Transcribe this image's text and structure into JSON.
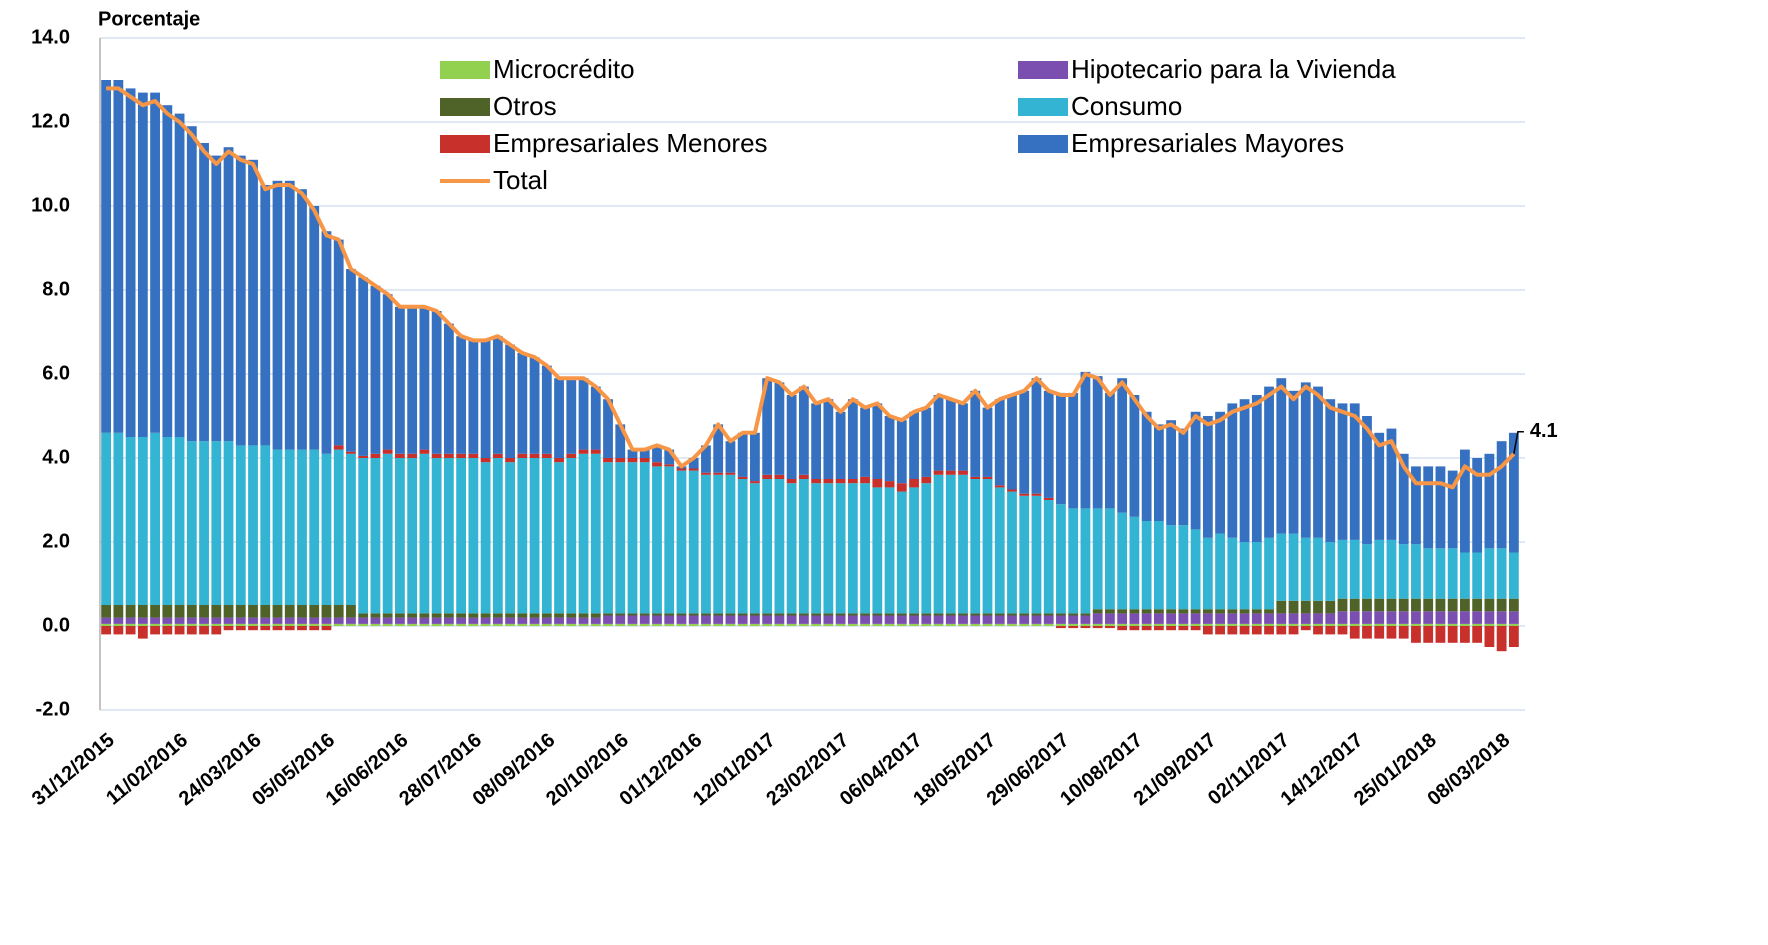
{
  "chart_data": {
    "type": "stacked-bar-line",
    "y_label": "Porcentaje",
    "categories": [
      "31/12/2015",
      null,
      null,
      null,
      null,
      null,
      "11/02/2016",
      null,
      null,
      null,
      null,
      null,
      "24/03/2016",
      null,
      null,
      null,
      null,
      null,
      "05/05/2016",
      null,
      null,
      null,
      null,
      null,
      "16/06/2016",
      null,
      null,
      null,
      null,
      null,
      "28/07/2016",
      null,
      null,
      null,
      null,
      null,
      "08/09/2016",
      null,
      null,
      null,
      null,
      null,
      "20/10/2016",
      null,
      null,
      null,
      null,
      null,
      "01/12/2016",
      null,
      null,
      null,
      null,
      null,
      "12/01/2017",
      null,
      null,
      null,
      null,
      null,
      "23/02/2017",
      null,
      null,
      null,
      null,
      null,
      "06/04/2017",
      null,
      null,
      null,
      null,
      null,
      "18/05/2017",
      null,
      null,
      null,
      null,
      null,
      "29/06/2017",
      null,
      null,
      null,
      null,
      null,
      "10/08/2017",
      null,
      null,
      null,
      null,
      null,
      "21/09/2017",
      null,
      null,
      null,
      null,
      null,
      "02/11/2017",
      null,
      null,
      null,
      null,
      null,
      "14/12/2017",
      null,
      null,
      null,
      null,
      null,
      "25/01/2018",
      null,
      null,
      null,
      null,
      null,
      "08/03/2018",
      null
    ],
    "ylim": [
      -2,
      14
    ],
    "yticks": [
      {
        "value": -2,
        "label": "-2.0"
      },
      {
        "value": 0,
        "label": "0.0"
      },
      {
        "value": 2,
        "label": "2.0"
      },
      {
        "value": 4,
        "label": "4.0"
      },
      {
        "value": 6,
        "label": "6.0"
      },
      {
        "value": 8,
        "label": "8.0"
      },
      {
        "value": 10,
        "label": "10.0"
      },
      {
        "value": 12,
        "label": "12.0"
      },
      {
        "value": 14,
        "label": "14.0"
      }
    ],
    "grid": true,
    "series": [
      {
        "name": "Microcrédito",
        "color": "#92d050",
        "values": [
          0.05,
          0.05,
          0.05,
          0.05,
          0.05,
          0.05,
          0.05,
          0.05,
          0.05,
          0.05,
          0.05,
          0.05,
          0.05,
          0.05,
          0.05,
          0.05,
          0.05,
          0.05,
          0.05,
          0.05,
          0.05,
          0.05,
          0.05,
          0.05,
          0.05,
          0.05,
          0.05,
          0.05,
          0.05,
          0.05,
          0.05,
          0.05,
          0.05,
          0.05,
          0.05,
          0.05,
          0.05,
          0.05,
          0.05,
          0.05,
          0.05,
          0.05,
          0.05,
          0.05,
          0.05,
          0.05,
          0.05,
          0.05,
          0.05,
          0.05,
          0.05,
          0.05,
          0.05,
          0.05,
          0.05,
          0.05,
          0.05,
          0.05,
          0.05,
          0.05,
          0.05,
          0.05,
          0.05,
          0.05,
          0.05,
          0.05,
          0.05,
          0.05,
          0.05,
          0.05,
          0.05,
          0.05,
          0.05,
          0.05,
          0.05,
          0.05,
          0.05,
          0.05,
          0.05,
          0.05,
          0.05,
          0.05,
          0.05,
          0.05,
          0.05,
          0.05,
          0.05,
          0.05,
          0.05,
          0.05,
          0.05,
          0.05,
          0.05,
          0.05,
          0.05,
          0.05,
          0.05,
          0.05,
          0.05,
          0.05,
          0.05,
          0.05,
          0.05,
          0.05,
          0.05,
          0.05,
          0.05,
          0.05,
          0.05,
          0.05,
          0.05,
          0.05,
          0.05,
          0.05,
          0.05,
          0.05
        ]
      },
      {
        "name": "Hipotecario para la Vivienda",
        "color": "#7b4fb0",
        "values": [
          0.15,
          0.15,
          0.15,
          0.15,
          0.15,
          0.15,
          0.15,
          0.15,
          0.15,
          0.15,
          0.15,
          0.15,
          0.15,
          0.15,
          0.15,
          0.15,
          0.15,
          0.15,
          0.15,
          0.15,
          0.15,
          0.15,
          0.15,
          0.15,
          0.15,
          0.15,
          0.15,
          0.15,
          0.15,
          0.15,
          0.15,
          0.15,
          0.15,
          0.15,
          0.15,
          0.15,
          0.15,
          0.15,
          0.15,
          0.15,
          0.15,
          0.2,
          0.2,
          0.2,
          0.2,
          0.2,
          0.2,
          0.2,
          0.2,
          0.2,
          0.2,
          0.2,
          0.2,
          0.2,
          0.2,
          0.2,
          0.2,
          0.2,
          0.2,
          0.2,
          0.2,
          0.2,
          0.2,
          0.2,
          0.2,
          0.2,
          0.2,
          0.2,
          0.2,
          0.2,
          0.2,
          0.2,
          0.2,
          0.2,
          0.2,
          0.2,
          0.2,
          0.2,
          0.2,
          0.2,
          0.2,
          0.25,
          0.25,
          0.25,
          0.25,
          0.25,
          0.25,
          0.25,
          0.25,
          0.25,
          0.25,
          0.25,
          0.25,
          0.25,
          0.25,
          0.25,
          0.25,
          0.25,
          0.25,
          0.25,
          0.25,
          0.3,
          0.3,
          0.3,
          0.3,
          0.3,
          0.3,
          0.3,
          0.3,
          0.3,
          0.3,
          0.3,
          0.3,
          0.3,
          0.3,
          0.3
        ]
      },
      {
        "name": "Otros",
        "color": "#4f6228",
        "values": [
          0.3,
          0.3,
          0.3,
          0.3,
          0.3,
          0.3,
          0.3,
          0.3,
          0.3,
          0.3,
          0.3,
          0.3,
          0.3,
          0.3,
          0.3,
          0.3,
          0.3,
          0.3,
          0.3,
          0.3,
          0.3,
          0.1,
          0.1,
          0.1,
          0.1,
          0.1,
          0.1,
          0.1,
          0.1,
          0.1,
          0.1,
          0.1,
          0.1,
          0.1,
          0.1,
          0.1,
          0.1,
          0.1,
          0.1,
          0.1,
          0.1,
          0.05,
          0.05,
          0.05,
          0.05,
          0.05,
          0.05,
          0.05,
          0.05,
          0.05,
          0.05,
          0.05,
          0.05,
          0.05,
          0.05,
          0.05,
          0.05,
          0.05,
          0.05,
          0.05,
          0.05,
          0.05,
          0.05,
          0.05,
          0.05,
          0.05,
          0.05,
          0.05,
          0.05,
          0.05,
          0.05,
          0.05,
          0.05,
          0.05,
          0.05,
          0.05,
          0.05,
          0.05,
          0.05,
          0.05,
          0.05,
          0.1,
          0.1,
          0.1,
          0.1,
          0.1,
          0.1,
          0.1,
          0.1,
          0.1,
          0.1,
          0.1,
          0.1,
          0.1,
          0.1,
          0.1,
          0.3,
          0.3,
          0.3,
          0.3,
          0.3,
          0.3,
          0.3,
          0.3,
          0.3,
          0.3,
          0.3,
          0.3,
          0.3,
          0.3,
          0.3,
          0.3,
          0.3,
          0.3,
          0.3,
          0.3
        ]
      },
      {
        "name": "Consumo",
        "color": "#33b4d2",
        "values": [
          4.1,
          4.1,
          4.0,
          4.0,
          4.1,
          4.0,
          4.0,
          3.9,
          3.9,
          3.9,
          3.9,
          3.8,
          3.8,
          3.8,
          3.7,
          3.7,
          3.7,
          3.7,
          3.6,
          3.7,
          3.6,
          3.7,
          3.7,
          3.8,
          3.7,
          3.7,
          3.8,
          3.7,
          3.7,
          3.7,
          3.7,
          3.6,
          3.7,
          3.6,
          3.7,
          3.7,
          3.7,
          3.6,
          3.7,
          3.8,
          3.8,
          3.6,
          3.6,
          3.6,
          3.6,
          3.5,
          3.5,
          3.4,
          3.4,
          3.3,
          3.3,
          3.3,
          3.2,
          3.1,
          3.2,
          3.2,
          3.1,
          3.2,
          3.1,
          3.1,
          3.1,
          3.1,
          3.1,
          3.0,
          3.0,
          2.9,
          3.0,
          3.1,
          3.3,
          3.3,
          3.3,
          3.2,
          3.2,
          3.0,
          2.9,
          2.8,
          2.8,
          2.7,
          2.6,
          2.5,
          2.5,
          2.4,
          2.4,
          2.3,
          2.2,
          2.1,
          2.1,
          2.0,
          2.0,
          1.9,
          1.7,
          1.8,
          1.7,
          1.6,
          1.6,
          1.7,
          1.6,
          1.6,
          1.5,
          1.5,
          1.4,
          1.4,
          1.4,
          1.3,
          1.4,
          1.4,
          1.3,
          1.3,
          1.2,
          1.2,
          1.2,
          1.1,
          1.1,
          1.2,
          1.2,
          1.1
        ]
      },
      {
        "name": "Empresariales Menores",
        "color": "#c8302c",
        "values": [
          -0.2,
          -0.2,
          -0.2,
          -0.3,
          -0.2,
          -0.2,
          -0.2,
          -0.2,
          -0.2,
          -0.2,
          -0.1,
          -0.1,
          -0.1,
          -0.1,
          -0.1,
          -0.1,
          -0.1,
          -0.1,
          -0.1,
          0.1,
          0.05,
          0.05,
          0.1,
          0.1,
          0.1,
          0.1,
          0.1,
          0.1,
          0.1,
          0.1,
          0.1,
          0.1,
          0.1,
          0.1,
          0.1,
          0.1,
          0.1,
          0.1,
          0.1,
          0.1,
          0.1,
          0.1,
          0.1,
          0.1,
          0.1,
          0.1,
          0.05,
          0.05,
          0.05,
          0.05,
          0.05,
          0.05,
          0.05,
          0.05,
          0.1,
          0.1,
          0.1,
          0.1,
          0.1,
          0.1,
          0.1,
          0.1,
          0.15,
          0.2,
          0.15,
          0.2,
          0.2,
          0.15,
          0.1,
          0.1,
          0.1,
          0.05,
          0.05,
          0.05,
          0.05,
          0.05,
          0.05,
          0.05,
          -0.05,
          -0.05,
          -0.05,
          -0.05,
          -0.05,
          -0.1,
          -0.1,
          -0.1,
          -0.1,
          -0.1,
          -0.1,
          -0.1,
          -0.2,
          -0.2,
          -0.2,
          -0.2,
          -0.2,
          -0.2,
          -0.2,
          -0.2,
          -0.1,
          -0.2,
          -0.2,
          -0.2,
          -0.3,
          -0.3,
          -0.3,
          -0.3,
          -0.3,
          -0.4,
          -0.4,
          -0.4,
          -0.4,
          -0.4,
          -0.4,
          -0.5,
          -0.6,
          -0.5
        ]
      },
      {
        "name": "Empresariales Mayores",
        "color": "#3670c0",
        "values": [
          8.4,
          8.4,
          8.3,
          8.2,
          8.1,
          7.9,
          7.7,
          7.5,
          7.1,
          6.8,
          7.0,
          6.9,
          6.8,
          6.2,
          6.4,
          6.4,
          6.2,
          5.8,
          5.3,
          4.9,
          4.35,
          4.25,
          4.0,
          3.7,
          3.5,
          3.5,
          3.4,
          3.4,
          3.1,
          2.8,
          2.7,
          2.8,
          2.8,
          2.7,
          2.4,
          2.3,
          2.1,
          1.9,
          1.8,
          1.7,
          1.5,
          1.4,
          0.8,
          0.2,
          0.2,
          0.4,
          0.35,
          0.05,
          0.25,
          0.65,
          1.15,
          0.75,
          1.05,
          1.15,
          2.3,
          2.2,
          2.0,
          2.1,
          1.8,
          1.9,
          1.6,
          1.9,
          1.65,
          1.8,
          1.55,
          1.5,
          1.6,
          1.65,
          1.8,
          1.7,
          1.6,
          2.05,
          1.65,
          2.05,
          2.25,
          2.45,
          2.75,
          2.55,
          2.65,
          2.75,
          3.25,
          3.15,
          2.75,
          3.2,
          2.9,
          2.6,
          2.3,
          2.5,
          2.3,
          2.8,
          2.9,
          2.9,
          3.2,
          3.4,
          3.5,
          3.6,
          3.7,
          3.4,
          3.7,
          3.6,
          3.4,
          3.25,
          3.25,
          3.05,
          2.55,
          2.65,
          2.15,
          1.85,
          1.95,
          1.95,
          1.85,
          2.45,
          2.25,
          2.25,
          2.55,
          2.85
        ]
      },
      {
        "name": "Total",
        "color": "#f79646",
        "line": true,
        "values": [
          12.8,
          12.8,
          12.6,
          12.4,
          12.5,
          12.2,
          12.0,
          11.7,
          11.3,
          11.0,
          11.3,
          11.1,
          11.0,
          10.4,
          10.5,
          10.5,
          10.3,
          9.9,
          9.3,
          9.2,
          8.5,
          8.3,
          8.1,
          7.9,
          7.6,
          7.6,
          7.6,
          7.5,
          7.2,
          6.9,
          6.8,
          6.8,
          6.9,
          6.7,
          6.5,
          6.4,
          6.2,
          5.9,
          5.9,
          5.9,
          5.7,
          5.4,
          4.8,
          4.2,
          4.2,
          4.3,
          4.2,
          3.8,
          4.0,
          4.3,
          4.8,
          4.4,
          4.6,
          4.6,
          5.9,
          5.8,
          5.5,
          5.7,
          5.3,
          5.4,
          5.1,
          5.4,
          5.2,
          5.3,
          5.0,
          4.9,
          5.1,
          5.2,
          5.5,
          5.4,
          5.3,
          5.6,
          5.2,
          5.4,
          5.5,
          5.6,
          5.9,
          5.6,
          5.5,
          5.5,
          6.0,
          5.9,
          5.5,
          5.8,
          5.4,
          5.0,
          4.7,
          4.8,
          4.6,
          5.0,
          4.8,
          4.9,
          5.1,
          5.2,
          5.3,
          5.5,
          5.7,
          5.4,
          5.7,
          5.5,
          5.2,
          5.1,
          5.0,
          4.7,
          4.3,
          4.4,
          3.8,
          3.4,
          3.4,
          3.4,
          3.3,
          3.8,
          3.6,
          3.6,
          3.8,
          4.1
        ]
      }
    ]
  }
}
